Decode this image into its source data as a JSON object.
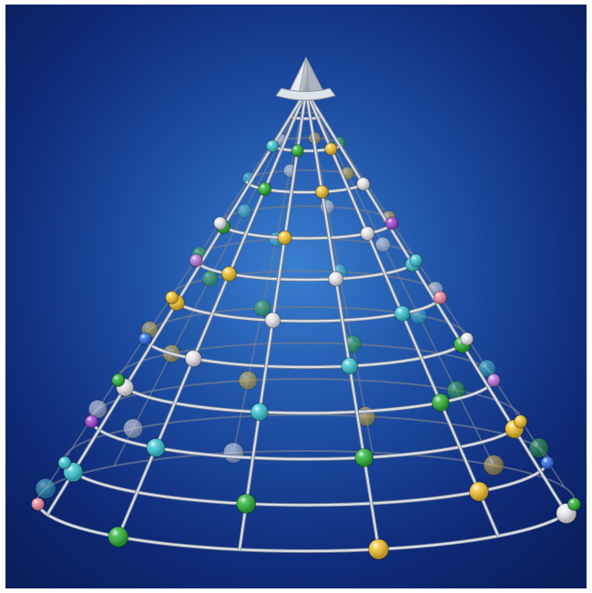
{
  "image": {
    "subject": "wire-cone-christmas-tree",
    "background_colors": [
      "#3a7fd0",
      "#1d4ea3",
      "#0f2a78",
      "#0a1f5e"
    ],
    "wire_color": "#d9dde4",
    "wire_shadow_color": "#6f7c92",
    "topper": "crystal-gem",
    "bead_colors": [
      "#f2c230",
      "#2f6ee8",
      "#2fb53a",
      "#a545d8",
      "#3cc7d6",
      "#f08aa0",
      "#e8e8ee",
      "#c07ae0"
    ]
  }
}
